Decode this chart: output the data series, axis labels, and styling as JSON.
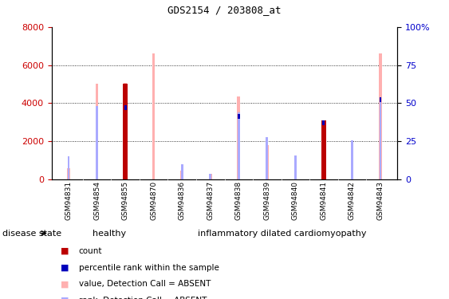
{
  "title": "GDS2154 / 203808_at",
  "samples": [
    "GSM94831",
    "GSM94854",
    "GSM94855",
    "GSM94870",
    "GSM94836",
    "GSM94837",
    "GSM94838",
    "GSM94839",
    "GSM94840",
    "GSM94841",
    "GSM94842",
    "GSM94843"
  ],
  "healthy_count": 4,
  "group1_label": "healthy",
  "group2_label": "inflammatory dilated cardiomyopathy",
  "disease_state_label": "disease state",
  "ylim_left": [
    0,
    8000
  ],
  "ylim_right": [
    0,
    100
  ],
  "yticks_left": [
    0,
    2000,
    4000,
    6000,
    8000
  ],
  "yticks_right": [
    0,
    25,
    50,
    75,
    100
  ],
  "value_absent": [
    600,
    5000,
    5050,
    6600,
    450,
    300,
    4350,
    1800,
    850,
    1600,
    1620,
    6600
  ],
  "rank_absent": [
    1200,
    3850,
    0,
    0,
    800,
    300,
    3500,
    2200,
    1250,
    0,
    2050,
    4300
  ],
  "count": [
    0,
    0,
    5000,
    0,
    0,
    0,
    0,
    0,
    0,
    3100,
    0,
    0
  ],
  "percentile_rank": [
    0,
    0,
    3900,
    0,
    0,
    0,
    3450,
    0,
    0,
    3100,
    0,
    4300
  ],
  "color_value_absent": "#ffb0b0",
  "color_rank_absent": "#aaaaff",
  "color_count": "#bb0000",
  "color_percentile": "#0000bb",
  "background_plot": "#ffffff",
  "background_xtick": "#cccccc",
  "background_group1": "#88ee88",
  "background_group2": "#22cc22",
  "gridcolor": "black",
  "ylabel_left_color": "#cc0000",
  "ylabel_right_color": "#0000cc"
}
